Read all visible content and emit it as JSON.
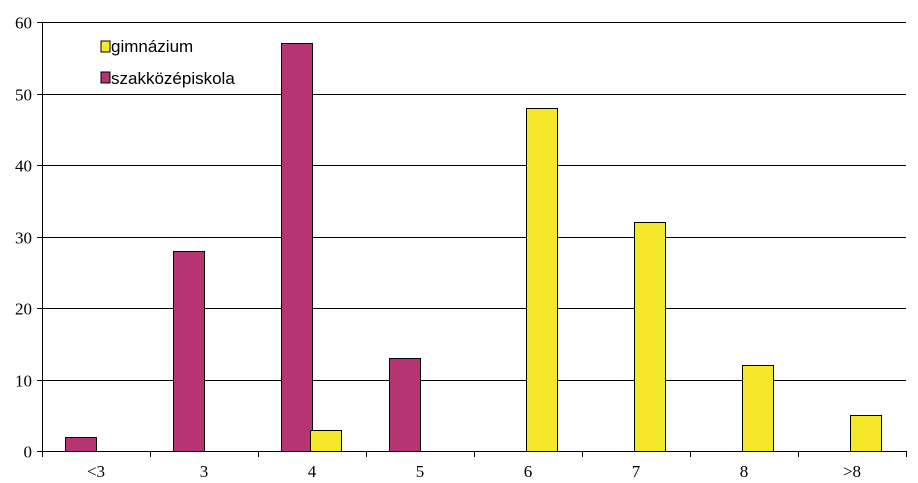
{
  "chart_data": {
    "type": "bar",
    "title": "",
    "xlabel": "",
    "ylabel": "",
    "categories": [
      "<3",
      "3",
      "4",
      "5",
      "6",
      "7",
      "8",
      ">8"
    ],
    "ylim": [
      0,
      60
    ],
    "yticks": [
      0,
      10,
      20,
      30,
      40,
      50,
      60
    ],
    "grid": true,
    "legend_position": "top-left",
    "series": [
      {
        "name": "gimnázium",
        "color": "#f5e82a",
        "values": [
          0,
          0,
          3,
          0,
          48,
          32,
          12,
          5
        ]
      },
      {
        "name": "szakközépiskola",
        "color": "#b73472",
        "values": [
          2,
          28,
          57,
          13,
          0,
          0,
          0,
          0
        ]
      }
    ]
  }
}
